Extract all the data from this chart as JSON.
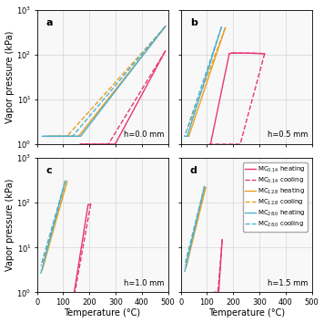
{
  "colors": {
    "pink": "#e8357a",
    "orange": "#e8a020",
    "blue": "#4eb0d0"
  },
  "panels": [
    {
      "label": "a",
      "h_label": "h=0.0 mm",
      "xlim": [
        0,
        500
      ],
      "ylim": [
        1,
        1000
      ]
    },
    {
      "label": "b",
      "h_label": "h=0.5 mm",
      "xlim": [
        0,
        500
      ],
      "ylim": [
        1,
        1000
      ]
    },
    {
      "label": "c",
      "h_label": "h=1.0 mm",
      "xlim": [
        0,
        500
      ],
      "ylim": [
        1,
        1000
      ]
    },
    {
      "label": "d",
      "h_label": "h=1.5 mm",
      "xlim": [
        0,
        500
      ],
      "ylim": [
        1,
        1000
      ]
    }
  ],
  "legend_entries": [
    {
      "label": "MC$_{0.14}$ heating",
      "color": "#e8357a",
      "linestyle": "-"
    },
    {
      "label": "MC$_{0.14}$ cooling",
      "color": "#e8357a",
      "linestyle": "--"
    },
    {
      "label": "MC$_{12.8}$ heating",
      "color": "#e8a020",
      "linestyle": "-"
    },
    {
      "label": "MC$_{12.8}$ cooling",
      "color": "#e8a020",
      "linestyle": "--"
    },
    {
      "label": "MC$_{28.0}$ heating",
      "color": "#4eb0d0",
      "linestyle": "-"
    },
    {
      "label": "MC$_{28.0}$ cooling",
      "color": "#4eb0d0",
      "linestyle": "--"
    }
  ]
}
